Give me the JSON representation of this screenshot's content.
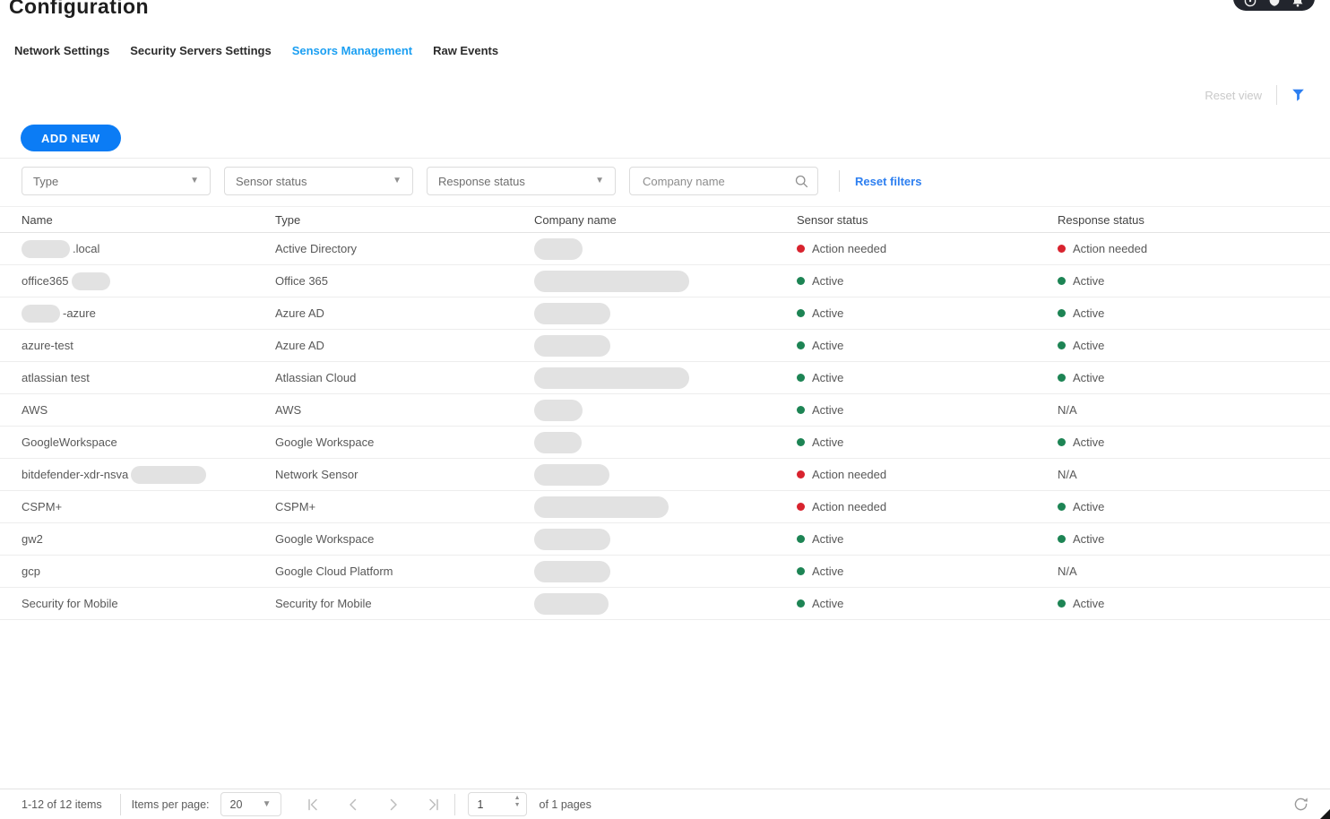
{
  "header": {
    "title": "Configuration"
  },
  "top_right": {
    "items": [
      {
        "icon": "help-icon"
      },
      {
        "icon": "shield-icon"
      },
      {
        "icon": "bell-icon",
        "badge": true
      }
    ],
    "badge_color": "#e52b32"
  },
  "tabs": [
    {
      "label": "Network Settings",
      "active": false
    },
    {
      "label": "Security Servers Settings",
      "active": false
    },
    {
      "label": "Sensors Management",
      "active": true
    },
    {
      "label": "Raw Events",
      "active": false
    }
  ],
  "view_toolbar": {
    "reset_view_label": "Reset view",
    "filter_icon": "funnel-icon"
  },
  "actions": {
    "add_new_label": "ADD NEW"
  },
  "filters": {
    "type_placeholder": "Type",
    "sensor_status_placeholder": "Sensor status",
    "response_status_placeholder": "Response status",
    "company_search_placeholder": "Company name",
    "reset_filters_label": "Reset filters"
  },
  "table": {
    "columns": [
      "Name",
      "Type",
      "Company name",
      "Sensor status",
      "Response status"
    ],
    "status_colors": {
      "Active": "#1d8454",
      "Action needed": "#d8232e"
    },
    "rows": [
      {
        "name_redact_before": 54,
        "name_text": ".local",
        "name_redact_after": 0,
        "type": "Active Directory",
        "company_redact_width": 54,
        "sensor_status": "Action needed",
        "response_status": "Action needed"
      },
      {
        "name_redact_before": 0,
        "name_text": "office365",
        "name_redact_after": 43,
        "type": "Office 365",
        "company_redact_width": 173,
        "sensor_status": "Active",
        "response_status": "Active"
      },
      {
        "name_redact_before": 43,
        "name_text": "-azure",
        "name_redact_after": 0,
        "type": "Azure AD",
        "company_redact_width": 85,
        "sensor_status": "Active",
        "response_status": "Active"
      },
      {
        "name_redact_before": 0,
        "name_text": "azure-test",
        "name_redact_after": 0,
        "type": "Azure AD",
        "company_redact_width": 85,
        "sensor_status": "Active",
        "response_status": "Active"
      },
      {
        "name_redact_before": 0,
        "name_text": "atlassian test",
        "name_redact_after": 0,
        "type": "Atlassian Cloud",
        "company_redact_width": 173,
        "sensor_status": "Active",
        "response_status": "Active"
      },
      {
        "name_redact_before": 0,
        "name_text": "AWS",
        "name_redact_after": 0,
        "type": "AWS",
        "company_redact_width": 54,
        "sensor_status": "Active",
        "response_status": "N/A"
      },
      {
        "name_redact_before": 0,
        "name_text": "GoogleWorkspace",
        "name_redact_after": 0,
        "type": "Google Workspace",
        "company_redact_width": 53,
        "sensor_status": "Active",
        "response_status": "Active"
      },
      {
        "name_redact_before": 0,
        "name_text": "bitdefender-xdr-nsva",
        "name_redact_after": 84,
        "type": "Network Sensor",
        "company_redact_width": 84,
        "sensor_status": "Action needed",
        "response_status": "N/A"
      },
      {
        "name_redact_before": 0,
        "name_text": "CSPM+",
        "name_redact_after": 0,
        "type": "CSPM+",
        "company_redact_width": 150,
        "sensor_status": "Action needed",
        "response_status": "Active"
      },
      {
        "name_redact_before": 0,
        "name_text": "gw2",
        "name_redact_after": 0,
        "type": "Google Workspace",
        "company_redact_width": 85,
        "sensor_status": "Active",
        "response_status": "Active"
      },
      {
        "name_redact_before": 0,
        "name_text": "gcp",
        "name_redact_after": 0,
        "type": "Google Cloud Platform",
        "company_redact_width": 85,
        "sensor_status": "Active",
        "response_status": "N/A"
      },
      {
        "name_redact_before": 0,
        "name_text": "Security for Mobile",
        "name_redact_after": 0,
        "type": "Security for Mobile",
        "company_redact_width": 83,
        "sensor_status": "Active",
        "response_status": "Active"
      }
    ]
  },
  "pagination": {
    "range": "1-12 of 12 items",
    "items_per_page_label": "Items per page:",
    "items_per_page_value": "20",
    "page_value": "1",
    "pages_label": "of 1 pages"
  },
  "colors": {
    "accent_blue": "#0b7cf5",
    "active_tab_blue": "#1b9ff2",
    "link_blue": "#2d7ff0",
    "status_green": "#1d8454",
    "status_red": "#d8232e"
  }
}
